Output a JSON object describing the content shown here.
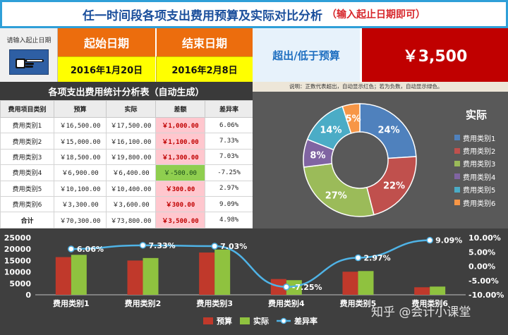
{
  "title": {
    "main": "任一时间段各项支出费用预算及实际对比分析",
    "sub": "（输入起止日期即可）"
  },
  "header": {
    "prompt": "请输入起止日期",
    "start_label": "起始日期",
    "end_label": "结束日期",
    "start_value": "2016年1月20日",
    "end_value": "2016年2月8日",
    "exceed_label": "超出/低于预算",
    "exceed_value": "￥3,500"
  },
  "table": {
    "title": "各项支出费用统计分析表（自动生成）",
    "headers": [
      "费用项目类别",
      "预算",
      "实际",
      "差额",
      "差异率"
    ],
    "rows": [
      {
        "cat": "费用类别1",
        "budget": "￥16,500.00",
        "actual": "￥17,500.00",
        "diff": "￥1,000.00",
        "rate": "6.06%",
        "sign": "pos"
      },
      {
        "cat": "费用类别2",
        "budget": "￥15,000.00",
        "actual": "￥16,100.00",
        "diff": "￥1,100.00",
        "rate": "7.33%",
        "sign": "pos"
      },
      {
        "cat": "费用类别3",
        "budget": "￥18,500.00",
        "actual": "￥19,800.00",
        "diff": "￥1,300.00",
        "rate": "7.03%",
        "sign": "pos"
      },
      {
        "cat": "费用类别4",
        "budget": "￥6,900.00",
        "actual": "￥6,400.00",
        "diff": "￥-500.00",
        "rate": "-7.25%",
        "sign": "neg"
      },
      {
        "cat": "费用类别5",
        "budget": "￥10,100.00",
        "actual": "￥10,400.00",
        "diff": "￥300.00",
        "rate": "2.97%",
        "sign": "pos"
      },
      {
        "cat": "费用类别6",
        "budget": "￥3,300.00",
        "actual": "￥3,600.00",
        "diff": "￥300.00",
        "rate": "9.09%",
        "sign": "pos"
      }
    ],
    "total": {
      "cat": "合计",
      "budget": "￥70,300.00",
      "actual": "￥73,800.00",
      "diff": "￥3,500.00",
      "rate": "4.98%"
    }
  },
  "note": "说明：正数代表超出，自动显示红色；若为负数，自动显示绿色。",
  "watermark": "知乎 @会计小课堂",
  "chart_data": [
    {
      "type": "pie",
      "title": "实际",
      "categories": [
        "费用类别1",
        "费用类别2",
        "费用类别3",
        "费用类别4",
        "费用类别5",
        "费用类别6"
      ],
      "values": [
        24,
        22,
        27,
        8,
        14,
        5
      ],
      "labels": [
        "24%",
        "22%",
        "27%",
        "8%",
        "14%",
        "5%"
      ],
      "colors": [
        "#4f81bd",
        "#c0504d",
        "#9bbb59",
        "#8064a2",
        "#4bacc6",
        "#f79646"
      ],
      "legend": "right"
    },
    {
      "type": "bar",
      "categories": [
        "费用类别1",
        "费用类别2",
        "费用类别3",
        "费用类别4",
        "费用类别5",
        "费用类别6"
      ],
      "series": [
        {
          "name": "预算",
          "values": [
            16500,
            15000,
            18500,
            6900,
            10100,
            3300
          ],
          "color": "#c0392b"
        },
        {
          "name": "实际",
          "values": [
            17500,
            16100,
            19800,
            6400,
            10400,
            3600
          ],
          "color": "#8fc23f"
        }
      ],
      "line_series": {
        "name": "差异率",
        "values": [
          6.06,
          7.33,
          7.03,
          -7.25,
          2.97,
          9.09
        ],
        "labels": [
          "6.06%",
          "7.33%",
          "7.03%",
          "-7.25%",
          "2.97%",
          "9.09%"
        ],
        "color": "#4fb3e6"
      },
      "ylim": [
        0,
        25000
      ],
      "yticks": [
        "0",
        "5000",
        "10000",
        "15000",
        "20000",
        "25000"
      ],
      "y2lim": [
        -10,
        10
      ],
      "y2ticks": [
        "-10.00%",
        "-5.00%",
        "0.00%",
        "5.00%",
        "10.00%"
      ],
      "legend": "bottom"
    }
  ]
}
